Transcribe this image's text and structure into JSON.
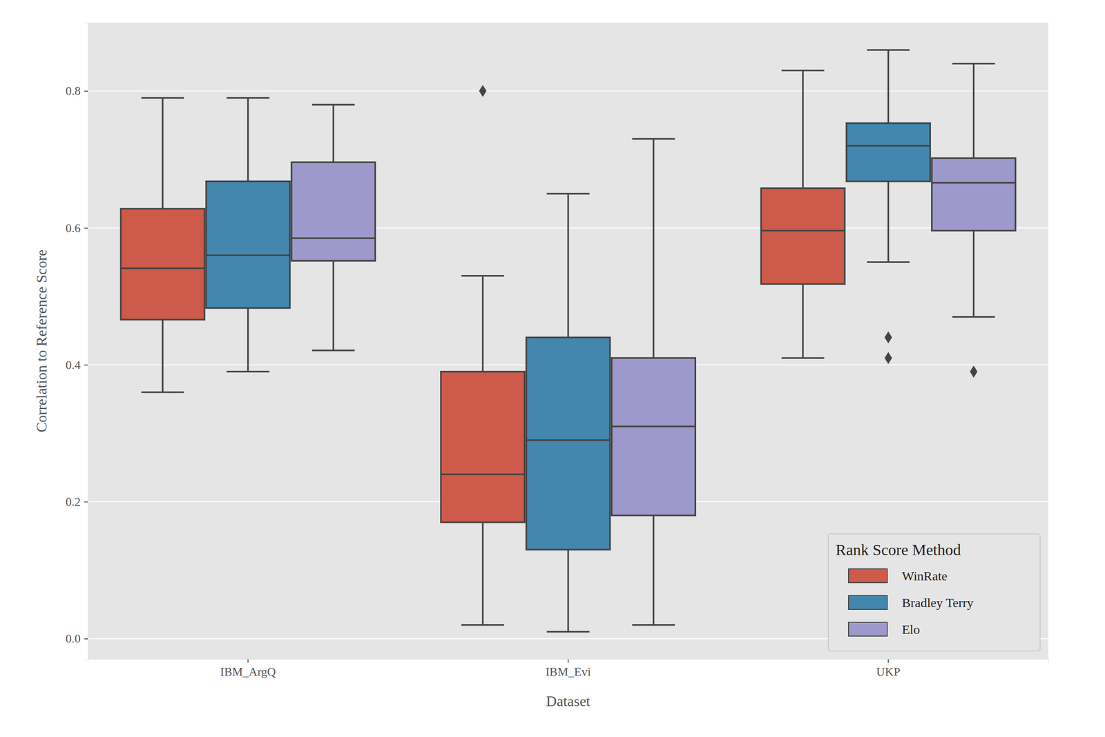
{
  "chart_data": {
    "type": "box",
    "x_label": "Dataset",
    "y_label": "Correlation to Reference Score",
    "categories": [
      "IBM_ArgQ",
      "IBM_Evi",
      "UKP"
    ],
    "legend_title": "Rank Score Method",
    "legend": "lower right",
    "grid": true,
    "ylim": [
      -0.03,
      0.9
    ],
    "yticks": [
      {
        "value": 0,
        "label": "0.0"
      },
      {
        "value": 0.2,
        "label": "0.2"
      },
      {
        "value": 0.4,
        "label": "0.4"
      },
      {
        "value": 0.6,
        "label": "0.6"
      },
      {
        "value": 0.8,
        "label": "0.8"
      }
    ],
    "series": [
      {
        "name": "WinRate",
        "color": "#cd5a4a",
        "whisker_low": [
          0.36,
          0.02,
          0.41
        ],
        "q1": [
          0.466,
          0.17,
          0.518
        ],
        "median": [
          0.541,
          0.24,
          0.596
        ],
        "q3": [
          0.628,
          0.39,
          0.658
        ],
        "whisker_high": [
          0.79,
          0.53,
          0.83
        ],
        "outliers": [
          [],
          [
            0.8
          ],
          []
        ]
      },
      {
        "name": "Bradley Terry",
        "color": "#4387ae",
        "whisker_low": [
          0.39,
          0.01,
          0.55
        ],
        "q1": [
          0.483,
          0.13,
          0.668
        ],
        "median": [
          0.56,
          0.29,
          0.72
        ],
        "q3": [
          0.668,
          0.44,
          0.753
        ],
        "whisker_high": [
          0.79,
          0.65,
          0.86
        ],
        "outliers": [
          [],
          [],
          [
            0.44,
            0.41
          ]
        ]
      },
      {
        "name": "Elo",
        "color": "#9e99cc",
        "whisker_low": [
          0.421,
          0.02,
          0.47
        ],
        "q1": [
          0.552,
          0.18,
          0.596
        ],
        "median": [
          0.585,
          0.31,
          0.666
        ],
        "q3": [
          0.696,
          0.41,
          0.702
        ],
        "whisker_high": [
          0.78,
          0.73,
          0.84
        ],
        "outliers": [
          [],
          [],
          [
            0.39
          ]
        ]
      }
    ]
  }
}
